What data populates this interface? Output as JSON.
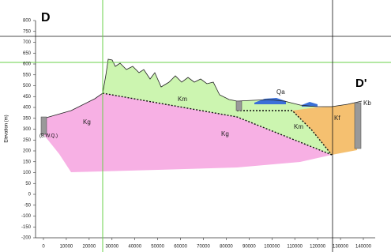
{
  "chart_data": {
    "type": "cross-section",
    "section_start": "D",
    "section_end": "D'",
    "ylabel": "Elevation (m)",
    "ylim": [
      -200,
      800
    ],
    "yticks": [
      -200,
      -150,
      -100,
      -50,
      0,
      50,
      100,
      150,
      200,
      250,
      300,
      350,
      400,
      450,
      500,
      550,
      600,
      650,
      700,
      750,
      800
    ],
    "xlim": [
      0,
      140000
    ],
    "xticks": [
      0,
      10000,
      20000,
      30000,
      40000,
      50000,
      60000,
      70000,
      80000,
      90000,
      100000,
      110000,
      120000,
      130000,
      140000
    ],
    "units": [
      "Kg",
      "Km",
      "Kg",
      "Km",
      "Qa",
      "Kf",
      "Kb"
    ],
    "well_note": "(B.W.Q.)"
  }
}
